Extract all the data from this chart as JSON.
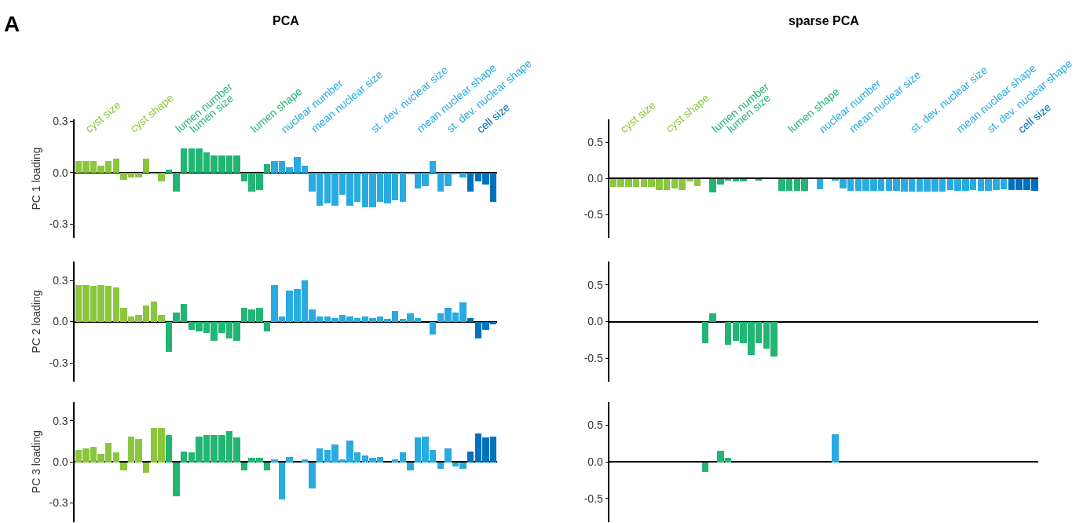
{
  "chart_data": [
    {
      "type": "bar",
      "title": "PCA",
      "ylabel": "PC 1 loading",
      "tick_labels": "y",
      "annotations": [
        "A",
        "cyst size",
        "cyst shape",
        "lumen number",
        "lumen size",
        "lumen shape",
        "nuclear number",
        "mean nuclear size",
        "st. dev. nuclear size",
        "mean nuclear shape",
        "st. dev. nuclear shape",
        "cell size"
      ],
      "ylim": [
        -0.38,
        0.31
      ],
      "yticks": [
        {
          "value": 0.3,
          "label": "0.3"
        },
        {
          "value": 0,
          "label": "0.0"
        },
        {
          "value": -0.3,
          "label": "-0.3"
        }
      ],
      "categories": [
        null,
        null,
        null,
        null,
        null,
        null,
        null,
        null,
        null,
        null,
        null,
        null,
        null,
        null,
        null,
        null,
        null,
        null,
        null,
        null,
        null,
        null,
        null,
        null,
        null,
        null,
        null,
        null,
        null,
        null,
        null,
        null,
        null,
        null,
        null,
        null,
        null,
        null,
        null,
        null,
        null,
        null,
        null,
        null,
        null,
        null,
        null,
        null,
        null,
        null,
        null,
        null,
        null,
        null,
        null,
        null
      ],
      "values": [
        0.07,
        0.07,
        0.07,
        0.04,
        0.07,
        0.08,
        -0.04,
        -0.03,
        -0.03,
        0.08,
        -0.01,
        -0.05,
        0.02,
        -0.11,
        0.14,
        0.14,
        0.14,
        0.12,
        0.1,
        0.1,
        0.1,
        0.1,
        -0.05,
        -0.11,
        -0.1,
        0.05,
        0.07,
        0.07,
        0.03,
        0.09,
        0.04,
        -0.11,
        -0.19,
        -0.18,
        -0.19,
        -0.13,
        -0.19,
        -0.17,
        -0.2,
        -0.2,
        -0.17,
        -0.18,
        -0.16,
        -0.17,
        -0.01,
        -0.09,
        -0.08,
        0.07,
        -0.11,
        -0.08,
        -0.01,
        -0.03,
        -0.11,
        -0.05,
        -0.07,
        -0.17
      ],
      "colors": [
        "#8cc63f",
        "#8cc63f",
        "#8cc63f",
        "#8cc63f",
        "#8cc63f",
        "#8cc63f",
        "#8cc63f",
        "#8cc63f",
        "#8cc63f",
        "#8cc63f",
        "#8cc63f",
        "#8cc63f",
        "#22b573",
        "#22b573",
        "#22b573",
        "#22b573",
        "#22b573",
        "#22b573",
        "#22b573",
        "#22b573",
        "#22b573",
        "#22b573",
        "#22b573",
        "#22b573",
        "#22b573",
        "#22b573",
        "#29abe2",
        "#29abe2",
        "#29abe2",
        "#29abe2",
        "#29abe2",
        "#29abe2",
        "#29abe2",
        "#29abe2",
        "#29abe2",
        "#29abe2",
        "#29abe2",
        "#29abe2",
        "#29abe2",
        "#29abe2",
        "#29abe2",
        "#29abe2",
        "#29abe2",
        "#29abe2",
        "#29abe2",
        "#29abe2",
        "#29abe2",
        "#29abe2",
        "#29abe2",
        "#29abe2",
        "#29abe2",
        "#29abe2",
        "#0071bc",
        "#0071bc",
        "#0071bc",
        "#0071bc"
      ]
    },
    {
      "type": "bar",
      "title": "sparse PCA",
      "tick_labels": "y",
      "annotations": [
        "cyst size",
        "cyst shape",
        "lumen number",
        "lumen size",
        "lumen shape",
        "nuclear number",
        "mean nuclear size",
        "st. dev. nuclear size",
        "mean nuclear shape",
        "st. dev. nuclear shape",
        "cell size"
      ],
      "ylim": [
        -0.82,
        0.82
      ],
      "yticks": [
        {
          "value": 0.5,
          "label": "0.5"
        },
        {
          "value": 0,
          "label": "0.0"
        },
        {
          "value": -0.5,
          "label": "-0.5"
        }
      ],
      "categories": [
        null,
        null,
        null,
        null,
        null,
        null,
        null,
        null,
        null,
        null,
        null,
        null,
        null,
        null,
        null,
        null,
        null,
        null,
        null,
        null,
        null,
        null,
        null,
        null,
        null,
        null,
        null,
        null,
        null,
        null,
        null,
        null,
        null,
        null,
        null,
        null,
        null,
        null,
        null,
        null,
        null,
        null,
        null,
        null,
        null,
        null,
        null,
        null,
        null,
        null,
        null,
        null,
        null,
        null,
        null,
        null
      ],
      "values": [
        -0.11,
        -0.11,
        -0.11,
        -0.11,
        -0.11,
        -0.11,
        -0.16,
        -0.16,
        -0.13,
        -0.16,
        -0.04,
        -0.1,
        0,
        -0.19,
        -0.08,
        -0.03,
        -0.04,
        -0.04,
        0,
        -0.03,
        0,
        0,
        -0.17,
        -0.17,
        -0.17,
        -0.17,
        0,
        -0.15,
        0,
        -0.03,
        -0.13,
        -0.17,
        -0.17,
        -0.17,
        -0.17,
        -0.17,
        -0.17,
        -0.17,
        -0.18,
        -0.18,
        -0.18,
        -0.18,
        -0.18,
        -0.18,
        -0.16,
        -0.17,
        -0.17,
        -0.16,
        -0.17,
        -0.17,
        -0.16,
        -0.15,
        -0.16,
        -0.16,
        -0.16,
        -0.17
      ],
      "colors": [
        "#8cc63f",
        "#8cc63f",
        "#8cc63f",
        "#8cc63f",
        "#8cc63f",
        "#8cc63f",
        "#8cc63f",
        "#8cc63f",
        "#8cc63f",
        "#8cc63f",
        "#8cc63f",
        "#8cc63f",
        "#22b573",
        "#22b573",
        "#22b573",
        "#22b573",
        "#22b573",
        "#22b573",
        "#22b573",
        "#22b573",
        "#22b573",
        "#22b573",
        "#22b573",
        "#22b573",
        "#22b573",
        "#22b573",
        "#29abe2",
        "#29abe2",
        "#29abe2",
        "#29abe2",
        "#29abe2",
        "#29abe2",
        "#29abe2",
        "#29abe2",
        "#29abe2",
        "#29abe2",
        "#29abe2",
        "#29abe2",
        "#29abe2",
        "#29abe2",
        "#29abe2",
        "#29abe2",
        "#29abe2",
        "#29abe2",
        "#29abe2",
        "#29abe2",
        "#29abe2",
        "#29abe2",
        "#29abe2",
        "#29abe2",
        "#29abe2",
        "#29abe2",
        "#0071bc",
        "#0071bc",
        "#0071bc",
        "#0071bc"
      ]
    },
    {
      "type": "bar",
      "ylabel": "PC 2 loading",
      "tick_labels": "y",
      "ylim": [
        -0.44,
        0.44
      ],
      "yticks": [
        {
          "value": 0.3,
          "label": "0.3"
        },
        {
          "value": 0,
          "label": "0.0"
        },
        {
          "value": -0.3,
          "label": "-0.3"
        }
      ],
      "categories": [
        null,
        null,
        null,
        null,
        null,
        null,
        null,
        null,
        null,
        null,
        null,
        null,
        null,
        null,
        null,
        null,
        null,
        null,
        null,
        null,
        null,
        null,
        null,
        null,
        null,
        null,
        null,
        null,
        null,
        null,
        null,
        null,
        null,
        null,
        null,
        null,
        null,
        null,
        null,
        null,
        null,
        null,
        null,
        null,
        null,
        null,
        null,
        null,
        null,
        null,
        null,
        null,
        null,
        null,
        null,
        null
      ],
      "values": [
        0.27,
        0.27,
        0.26,
        0.27,
        0.26,
        0.25,
        0.1,
        0.04,
        0.05,
        0.12,
        0.15,
        0.05,
        -0.22,
        0.07,
        0.13,
        -0.06,
        -0.07,
        -0.08,
        -0.14,
        -0.08,
        -0.12,
        -0.14,
        0.1,
        0.09,
        0.1,
        -0.07,
        0.27,
        0.04,
        0.23,
        0.24,
        0.3,
        0.09,
        0.04,
        0.04,
        0.03,
        0.05,
        0.04,
        0.03,
        0.04,
        0.03,
        0.04,
        0.02,
        0.08,
        0.02,
        0.06,
        0.03,
        0,
        -0.09,
        0.06,
        0.1,
        0.07,
        0.14,
        0.03,
        -0.12,
        -0.06,
        -0.02
      ],
      "colors": [
        "#8cc63f",
        "#8cc63f",
        "#8cc63f",
        "#8cc63f",
        "#8cc63f",
        "#8cc63f",
        "#8cc63f",
        "#8cc63f",
        "#8cc63f",
        "#8cc63f",
        "#8cc63f",
        "#8cc63f",
        "#22b573",
        "#22b573",
        "#22b573",
        "#22b573",
        "#22b573",
        "#22b573",
        "#22b573",
        "#22b573",
        "#22b573",
        "#22b573",
        "#22b573",
        "#22b573",
        "#22b573",
        "#22b573",
        "#29abe2",
        "#29abe2",
        "#29abe2",
        "#29abe2",
        "#29abe2",
        "#29abe2",
        "#29abe2",
        "#29abe2",
        "#29abe2",
        "#29abe2",
        "#29abe2",
        "#29abe2",
        "#29abe2",
        "#29abe2",
        "#29abe2",
        "#29abe2",
        "#29abe2",
        "#29abe2",
        "#29abe2",
        "#29abe2",
        "#29abe2",
        "#29abe2",
        "#29abe2",
        "#29abe2",
        "#29abe2",
        "#29abe2",
        "#0071bc",
        "#0071bc",
        "#0071bc",
        "#0071bc"
      ]
    },
    {
      "type": "bar",
      "tick_labels": "y",
      "ylim": [
        -0.82,
        0.82
      ],
      "yticks": [
        {
          "value": 0.5,
          "label": "0.5"
        },
        {
          "value": 0,
          "label": "0.0"
        },
        {
          "value": -0.5,
          "label": "-0.5"
        }
      ],
      "categories": [
        null,
        null,
        null,
        null,
        null,
        null,
        null,
        null,
        null,
        null,
        null,
        null,
        null,
        null,
        null,
        null,
        null,
        null,
        null,
        null,
        null,
        null,
        null,
        null,
        null,
        null,
        null,
        null,
        null,
        null,
        null,
        null,
        null,
        null,
        null,
        null,
        null,
        null,
        null,
        null,
        null,
        null,
        null,
        null,
        null,
        null,
        null,
        null,
        null,
        null,
        null,
        null,
        null,
        null,
        null,
        null
      ],
      "values": [
        0,
        0,
        0,
        0,
        0,
        0,
        0,
        0,
        0,
        0,
        0,
        0,
        -0.29,
        0.12,
        0,
        -0.31,
        -0.26,
        -0.29,
        -0.45,
        -0.29,
        -0.36,
        -0.47,
        0,
        0,
        0,
        0,
        0,
        0,
        0,
        0,
        0,
        0,
        0,
        0,
        0,
        0,
        0,
        0,
        0,
        0,
        0,
        0,
        0,
        0,
        0,
        0,
        0,
        0,
        0,
        0,
        0,
        0,
        0,
        0,
        0,
        0
      ],
      "colors": [
        "#8cc63f",
        "#8cc63f",
        "#8cc63f",
        "#8cc63f",
        "#8cc63f",
        "#8cc63f",
        "#8cc63f",
        "#8cc63f",
        "#8cc63f",
        "#8cc63f",
        "#8cc63f",
        "#8cc63f",
        "#22b573",
        "#22b573",
        "#22b573",
        "#22b573",
        "#22b573",
        "#22b573",
        "#22b573",
        "#22b573",
        "#22b573",
        "#22b573",
        "#22b573",
        "#22b573",
        "#22b573",
        "#22b573",
        "#29abe2",
        "#29abe2",
        "#29abe2",
        "#29abe2",
        "#29abe2",
        "#29abe2",
        "#29abe2",
        "#29abe2",
        "#29abe2",
        "#29abe2",
        "#29abe2",
        "#29abe2",
        "#29abe2",
        "#29abe2",
        "#29abe2",
        "#29abe2",
        "#29abe2",
        "#29abe2",
        "#29abe2",
        "#29abe2",
        "#29abe2",
        "#29abe2",
        "#29abe2",
        "#29abe2",
        "#29abe2",
        "#29abe2",
        "#0071bc",
        "#0071bc",
        "#0071bc",
        "#0071bc"
      ]
    },
    {
      "type": "bar",
      "ylabel": "PC 3 loading",
      "tick_labels": "y",
      "ylim": [
        -0.44,
        0.44
      ],
      "yticks": [
        {
          "value": 0.3,
          "label": "0.3"
        },
        {
          "value": 0,
          "label": "0.0"
        },
        {
          "value": -0.3,
          "label": "-0.3"
        }
      ],
      "categories": [
        null,
        null,
        null,
        null,
        null,
        null,
        null,
        null,
        null,
        null,
        null,
        null,
        null,
        null,
        null,
        null,
        null,
        null,
        null,
        null,
        null,
        null,
        null,
        null,
        null,
        null,
        null,
        null,
        null,
        null,
        null,
        null,
        null,
        null,
        null,
        null,
        null,
        null,
        null,
        null,
        null,
        null,
        null,
        null,
        null,
        null,
        null,
        null,
        null,
        null,
        null,
        null,
        null,
        null,
        null,
        null
      ],
      "values": [
        0.09,
        0.1,
        0.11,
        0.06,
        0.14,
        0.07,
        -0.06,
        0.19,
        0.17,
        -0.08,
        0.25,
        0.25,
        0.2,
        -0.25,
        0.08,
        0.07,
        0.19,
        0.2,
        0.2,
        0.2,
        0.23,
        0.18,
        -0.06,
        0.03,
        0.03,
        -0.06,
        0.02,
        -0.27,
        0.04,
        0,
        0.02,
        -0.19,
        0.1,
        0.09,
        0.13,
        0.02,
        0.16,
        0.07,
        0.05,
        0.03,
        0.04,
        0,
        0.02,
        0.07,
        -0.06,
        0.18,
        0.19,
        0.09,
        -0.05,
        0.1,
        -0.03,
        -0.05,
        0.08,
        0.21,
        0.18,
        0.19
      ],
      "colors": [
        "#8cc63f",
        "#8cc63f",
        "#8cc63f",
        "#8cc63f",
        "#8cc63f",
        "#8cc63f",
        "#8cc63f",
        "#8cc63f",
        "#8cc63f",
        "#8cc63f",
        "#8cc63f",
        "#8cc63f",
        "#22b573",
        "#22b573",
        "#22b573",
        "#22b573",
        "#22b573",
        "#22b573",
        "#22b573",
        "#22b573",
        "#22b573",
        "#22b573",
        "#22b573",
        "#22b573",
        "#22b573",
        "#22b573",
        "#29abe2",
        "#29abe2",
        "#29abe2",
        "#29abe2",
        "#29abe2",
        "#29abe2",
        "#29abe2",
        "#29abe2",
        "#29abe2",
        "#29abe2",
        "#29abe2",
        "#29abe2",
        "#29abe2",
        "#29abe2",
        "#29abe2",
        "#29abe2",
        "#29abe2",
        "#29abe2",
        "#29abe2",
        "#29abe2",
        "#29abe2",
        "#29abe2",
        "#29abe2",
        "#29abe2",
        "#29abe2",
        "#29abe2",
        "#0071bc",
        "#0071bc",
        "#0071bc",
        "#0071bc"
      ]
    },
    {
      "type": "bar",
      "tick_labels": "y",
      "ylim": [
        -0.82,
        0.82
      ],
      "yticks": [
        {
          "value": 0.5,
          "label": "0.5"
        },
        {
          "value": 0,
          "label": "0.0"
        },
        {
          "value": -0.5,
          "label": "-0.5"
        }
      ],
      "categories": [
        null,
        null,
        null,
        null,
        null,
        null,
        null,
        null,
        null,
        null,
        null,
        null,
        null,
        null,
        null,
        null,
        null,
        null,
        null,
        null,
        null,
        null,
        null,
        null,
        null,
        null,
        null,
        null,
        null,
        null,
        null,
        null,
        null,
        null,
        null,
        null,
        null,
        null,
        null,
        null,
        null,
        null,
        null,
        null,
        null,
        null,
        null,
        null,
        null,
        null,
        null,
        null,
        null,
        null,
        null,
        null
      ],
      "values": [
        0,
        0,
        0,
        0,
        0,
        0,
        0,
        0,
        0,
        0,
        0,
        0,
        -0.13,
        0,
        0.16,
        0.06,
        0,
        0,
        0,
        0,
        0,
        0,
        0,
        0,
        0,
        0,
        0,
        0,
        0,
        0.38,
        0,
        0,
        0,
        0,
        0,
        0,
        0,
        0,
        0,
        0,
        0,
        0,
        0,
        0,
        0,
        0,
        0,
        0,
        0,
        0,
        0,
        0,
        0,
        0,
        0,
        0
      ],
      "colors": [
        "#8cc63f",
        "#8cc63f",
        "#8cc63f",
        "#8cc63f",
        "#8cc63f",
        "#8cc63f",
        "#8cc63f",
        "#8cc63f",
        "#8cc63f",
        "#8cc63f",
        "#8cc63f",
        "#8cc63f",
        "#22b573",
        "#22b573",
        "#22b573",
        "#22b573",
        "#22b573",
        "#22b573",
        "#22b573",
        "#22b573",
        "#22b573",
        "#22b573",
        "#22b573",
        "#22b573",
        "#22b573",
        "#22b573",
        "#29abe2",
        "#29abe2",
        "#29abe2",
        "#29abe2",
        "#29abe2",
        "#29abe2",
        "#29abe2",
        "#29abe2",
        "#29abe2",
        "#29abe2",
        "#29abe2",
        "#29abe2",
        "#29abe2",
        "#29abe2",
        "#29abe2",
        "#29abe2",
        "#29abe2",
        "#29abe2",
        "#29abe2",
        "#29abe2",
        "#29abe2",
        "#29abe2",
        "#29abe2",
        "#29abe2",
        "#29abe2",
        "#29abe2",
        "#0071bc",
        "#0071bc",
        "#0071bc",
        "#0071bc"
      ]
    }
  ]
}
